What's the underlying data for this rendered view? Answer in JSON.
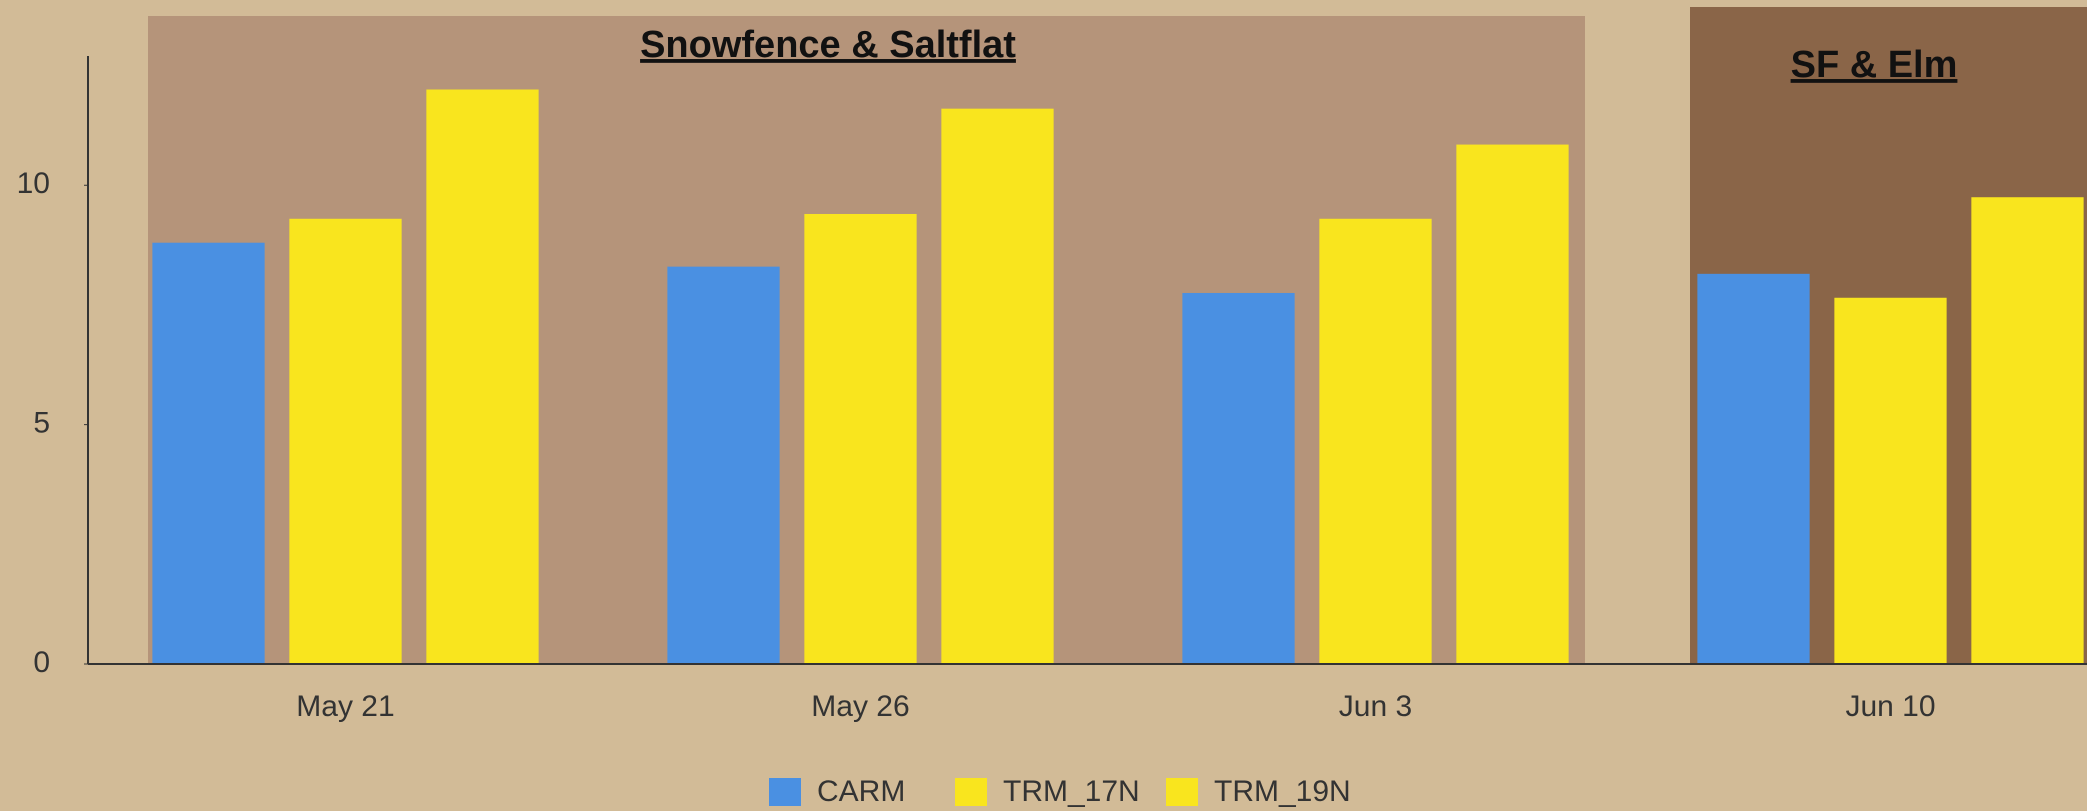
{
  "chart_data": {
    "type": "bar",
    "categories": [
      "May 21",
      "May 26",
      "Jun 3",
      "Jun 10"
    ],
    "series": [
      {
        "name": "CARM",
        "color": "#4a90e2",
        "values": [
          8.8,
          8.3,
          7.75,
          8.15
        ]
      },
      {
        "name": "TRM_17N",
        "color": "#f9e51e",
        "values": [
          9.3,
          9.4,
          9.3,
          7.65
        ]
      },
      {
        "name": "TRM_19N",
        "color": "#f9e51e",
        "values": [
          12.0,
          11.6,
          10.85,
          9.75
        ]
      }
    ],
    "annotations": [
      "Snowfence & Saltflat",
      "SF & Elm"
    ],
    "ylim": [
      0,
      12.7
    ],
    "yticks": [
      0,
      5,
      10
    ],
    "legend": "bottom"
  }
}
